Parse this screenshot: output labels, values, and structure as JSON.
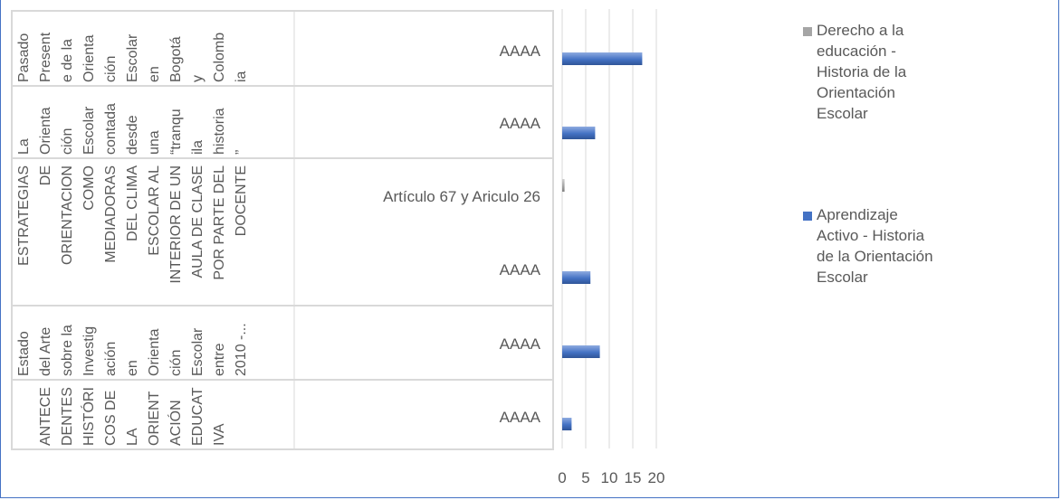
{
  "chart_data": {
    "type": "bar",
    "orientation": "horizontal",
    "xlim": [
      0,
      20
    ],
    "x_ticks": [
      "0",
      "5",
      "10",
      "15",
      "20"
    ],
    "grid": true,
    "legend_position": "right",
    "categories": [
      {
        "outer": "Pasado Presente de la Orientación Escolar en Bogotá y Colombia",
        "outer_lines": [
          "Pasado",
          "Present",
          "e de la",
          "Orienta",
          "ción",
          "Escolar",
          "en",
          "Bogotá",
          "y",
          "Colomb",
          "ia"
        ],
        "inner_label": "AAAA"
      },
      {
        "outer": "La Orientación Escolar contada desde una “tranquila historia”",
        "outer_lines": [
          "La",
          "Orienta",
          "ción",
          "Escolar",
          "contada",
          "desde",
          "una",
          "“tranqu",
          "ila",
          "historia",
          "”"
        ],
        "inner_label": "AAAA"
      },
      {
        "outer": "ESTRATEGIAS DE ORIENTACION COMO MEDIADORAS DEL CLIMA ESCOLAR AL INTERIOR DE UN AULA DE CLASE POR PARTE DEL DOCENTE",
        "outer_lines": [
          "ESTRATEGIAS",
          "DE",
          "ORIENTACION",
          "COMO",
          "MEDIADORAS",
          "DEL CLIMA",
          "ESCOLAR AL",
          "INTERIOR DE UN",
          "AULA DE CLASE",
          "POR PARTE DEL",
          "DOCENTE"
        ],
        "inner_label": "Artículo 67 y Ariculo 26",
        "inner_label_2": "AAAA"
      },
      {
        "outer": "Estado del Arte sobre la Investigación en Orientación Escolar entre 2010 -...",
        "outer_lines": [
          "Estado",
          "del Arte",
          "sobre la",
          "Investig",
          "ación",
          "en",
          "Orienta",
          "ción",
          "Escolar",
          "entre",
          "2010 -..."
        ],
        "inner_label": "AAAA"
      },
      {
        "outer": "ANTECEDENTES HISTÓRICOS DE LA ORIENTACIÓN EDUCATIVA",
        "outer_lines": [
          "",
          "ANTECE",
          "DENTES",
          "HISTÓRI",
          "COS DE",
          "LA",
          "ORIENT",
          "ACIÓN",
          "EDUCAT",
          "IVA"
        ],
        "inner_label": "AAAA"
      }
    ],
    "series": [
      {
        "name": "Derecho a la educación - Historia de la Orientación Escolar",
        "color": "#a5a5a5",
        "values": [
          0,
          0,
          0.5,
          0,
          0
        ]
      },
      {
        "name": "Aprendizaje Activo - Historia de la Orientación Escolar",
        "color": "#4472c4",
        "values": [
          17,
          7,
          6,
          8,
          2
        ]
      }
    ],
    "bars": [
      {
        "series": 1,
        "value": 17,
        "row": "Pasado Presente de la Orientación Escolar en Bogotá y Colombia"
      },
      {
        "series": 1,
        "value": 7,
        "row": "La Orientación Escolar contada desde una “tranquila historia”"
      },
      {
        "series": 0,
        "value": 0.5,
        "row": "ESTRATEGIAS DE ORIENTACION COMO MEDIADORAS DEL CLIMA ESCOLAR AL INTERIOR DE UN AULA DE CLASE POR PARTE DEL DOCENTE"
      },
      {
        "series": 1,
        "value": 6,
        "row": "ESTRATEGIAS DE ORIENTACION COMO MEDIADORAS DEL CLIMA ESCOLAR AL INTERIOR DE UN AULA DE CLASE POR PARTE DEL DOCENTE"
      },
      {
        "series": 1,
        "value": 8,
        "row": "Estado del Arte sobre la Investigación en Orientación Escolar entre 2010 -..."
      },
      {
        "series": 1,
        "value": 2,
        "row": "ANTECEDENTES HISTÓRICOS DE LA ORIENTACIÓN EDUCATIVA"
      }
    ]
  },
  "legend": [
    {
      "lines": [
        "Derecho a la",
        "educación  -",
        "Historia de la",
        "Orientación",
        "Escolar"
      ],
      "color": "#a5a5a5"
    },
    {
      "lines": [
        "Aprendizaje",
        "Activo  - Historia",
        "de la Orientación",
        "Escolar"
      ],
      "color": "#4472c4"
    }
  ]
}
